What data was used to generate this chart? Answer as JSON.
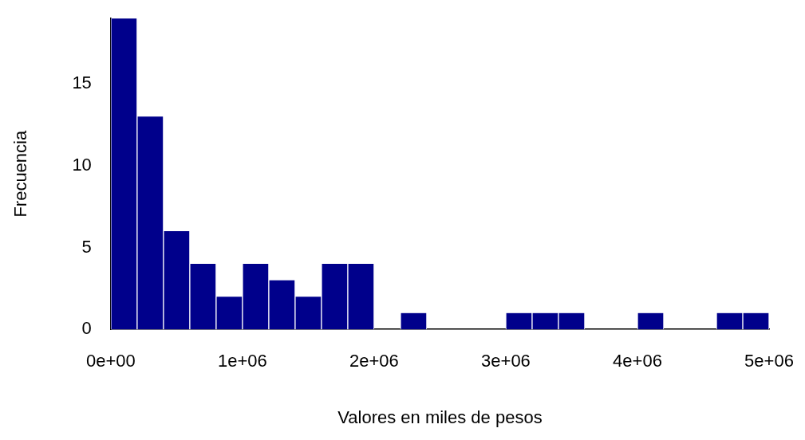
{
  "chart_data": {
    "type": "histogram",
    "xlabel": "Valores en miles de pesos",
    "ylabel": "Frecuencia",
    "bins": [
      0,
      200000,
      400000,
      600000,
      800000,
      1000000,
      1200000,
      1400000,
      1600000,
      1800000,
      2000000,
      2200000,
      2400000,
      2600000,
      2800000,
      3000000,
      3200000,
      3400000,
      3600000,
      3800000,
      4000000,
      4200000,
      4400000,
      4600000,
      4800000,
      5000000
    ],
    "values": [
      19,
      13,
      6,
      4,
      2,
      4,
      3,
      2,
      4,
      4,
      0,
      1,
      0,
      0,
      0,
      1,
      1,
      1,
      0,
      0,
      1,
      0,
      0,
      1,
      1
    ],
    "color": "#00008b",
    "xlim": [
      0,
      5000000
    ],
    "xticks": [
      {
        "value": 0,
        "label": "0e+00"
      },
      {
        "value": 1000000,
        "label": "1e+06"
      },
      {
        "value": 2000000,
        "label": "2e+06"
      },
      {
        "value": 3000000,
        "label": "3e+06"
      },
      {
        "value": 4000000,
        "label": "4e+06"
      },
      {
        "value": 5000000,
        "label": "5e+06"
      }
    ],
    "ylim": [
      0,
      19
    ],
    "yticks": [
      0,
      5,
      10,
      15
    ],
    "grid": false,
    "legend": false
  }
}
